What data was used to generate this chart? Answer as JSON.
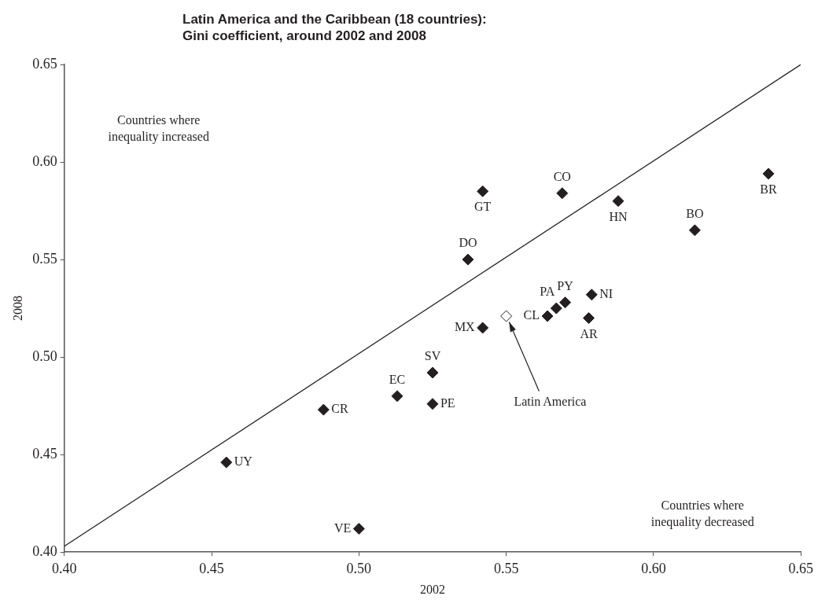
{
  "chart_data": {
    "type": "scatter",
    "title": "Latin America and the Caribbean (18 countries):\nGini coefficient, around 2002 and 2008",
    "xlabel": "2002",
    "ylabel": "2008",
    "xlim": [
      0.4,
      0.65
    ],
    "xticks": [
      {
        "value": 0.4,
        "label": "0.40"
      },
      {
        "value": 0.45,
        "label": "0.45"
      },
      {
        "value": 0.5,
        "label": "0.50"
      },
      {
        "value": 0.55,
        "label": "0.55"
      },
      {
        "value": 0.6,
        "label": "0.60"
      },
      {
        "value": 0.65,
        "label": "0.65"
      }
    ],
    "ylim": [
      0.4,
      0.65
    ],
    "yticks": [
      {
        "value": 0.4,
        "label": "0.40"
      },
      {
        "value": 0.45,
        "label": "0.45"
      },
      {
        "value": 0.5,
        "label": "0.50"
      },
      {
        "value": 0.55,
        "label": "0.55"
      },
      {
        "value": 0.6,
        "label": "0.60"
      },
      {
        "value": 0.65,
        "label": "0.65"
      }
    ],
    "grid": false,
    "legend": false,
    "marker": "diamond",
    "series": [
      {
        "color": "#231f20",
        "x": [
          0.455,
          0.488,
          0.5,
          0.513,
          0.525,
          0.525,
          0.542,
          0.542,
          0.537,
          0.569,
          0.588,
          0.614,
          0.639,
          0.579,
          0.57,
          0.567,
          0.564,
          0.578
        ],
        "values": [
          0.446,
          0.473,
          0.412,
          0.48,
          0.492,
          0.476,
          0.515,
          0.585,
          0.55,
          0.584,
          0.58,
          0.565,
          0.594,
          0.532,
          0.528,
          0.525,
          0.521,
          0.52
        ]
      },
      {
        "type": "scatter",
        "color": "#ffffff",
        "x": [
          0.55
        ],
        "values": [
          0.521
        ]
      },
      {
        "type": "line",
        "color": "#231f20",
        "marker": "none",
        "x": [
          0.4,
          0.65
        ],
        "values": [
          0.403,
          0.65
        ]
      }
    ],
    "annotations": [
      {
        "text": "UY",
        "x": 0.455,
        "y": 0.446
      },
      {
        "text": "CR",
        "x": 0.488,
        "y": 0.473
      },
      {
        "text": "VE",
        "x": 0.5,
        "y": 0.412
      },
      {
        "text": "EC",
        "x": 0.513,
        "y": 0.48
      },
      {
        "text": "SV",
        "x": 0.525,
        "y": 0.492
      },
      {
        "text": "PE",
        "x": 0.525,
        "y": 0.476
      },
      {
        "text": "MX",
        "x": 0.542,
        "y": 0.515
      },
      {
        "text": "GT",
        "x": 0.542,
        "y": 0.585
      },
      {
        "text": "DO",
        "x": 0.537,
        "y": 0.55
      },
      {
        "text": "CO",
        "x": 0.569,
        "y": 0.584
      },
      {
        "text": "HN",
        "x": 0.588,
        "y": 0.58
      },
      {
        "text": "BO",
        "x": 0.614,
        "y": 0.565
      },
      {
        "text": "BR",
        "x": 0.639,
        "y": 0.594
      },
      {
        "text": "NI",
        "x": 0.579,
        "y": 0.532
      },
      {
        "text": "PY",
        "x": 0.57,
        "y": 0.528
      },
      {
        "text": "PA",
        "x": 0.567,
        "y": 0.525
      },
      {
        "text": "CL",
        "x": 0.564,
        "y": 0.521
      },
      {
        "text": "AR",
        "x": 0.578,
        "y": 0.52
      },
      {
        "text": "Latin America",
        "x": 0.551,
        "y": 0.518
      },
      "Countries where inequality increased",
      "Countries where inequality decreased"
    ]
  }
}
